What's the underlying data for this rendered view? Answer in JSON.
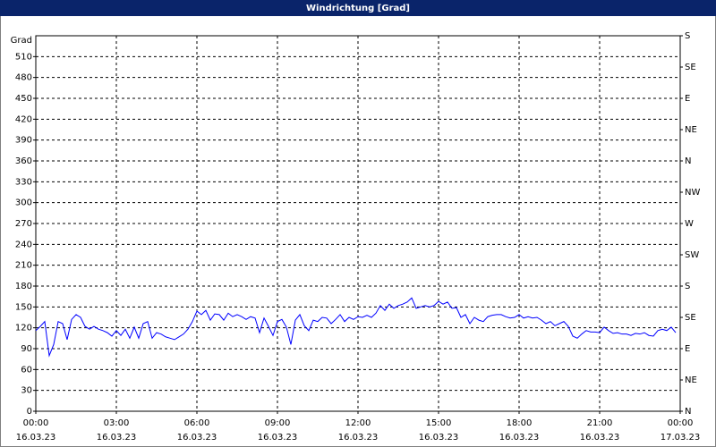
{
  "chart_data": {
    "type": "line",
    "title": "Windrichtung [Grad]",
    "ylabel": "Grad",
    "x": [
      0,
      10,
      20,
      30,
      40,
      50,
      60,
      70,
      80,
      90,
      100,
      110,
      120,
      130,
      140,
      150,
      160,
      170,
      180,
      190,
      200,
      210,
      220,
      230,
      240,
      250,
      260,
      270,
      280,
      290,
      300,
      310,
      320,
      330,
      340,
      350,
      360,
      370,
      380,
      390,
      400,
      410,
      420,
      430,
      440,
      450,
      460,
      470,
      480,
      490,
      500,
      510,
      520,
      530,
      540,
      550,
      560,
      570,
      580,
      590,
      600,
      610,
      620,
      630,
      640,
      650,
      660,
      670,
      680,
      690,
      700,
      710,
      720,
      730,
      740,
      750,
      760,
      770,
      780,
      790,
      800,
      810,
      820,
      830,
      840,
      850,
      860,
      870,
      880,
      890,
      900,
      910,
      920,
      930,
      940,
      950,
      960,
      970,
      980,
      990,
      1000,
      1010,
      1020,
      1030,
      1040,
      1050,
      1060,
      1070,
      1080,
      1090,
      1100,
      1110,
      1120,
      1130,
      1140,
      1150,
      1160,
      1170,
      1180,
      1190,
      1200,
      1210,
      1220,
      1230,
      1240,
      1250,
      1260,
      1270,
      1280,
      1290,
      1300,
      1310,
      1320,
      1330,
      1340,
      1350,
      1360,
      1370,
      1380,
      1390,
      1400,
      1410,
      1420,
      1430
    ],
    "series": [
      {
        "color": "#0000ff",
        "values": [
          116,
          122,
          129,
          80,
          96,
          129,
          126,
          103,
          132,
          139,
          135,
          122,
          118,
          122,
          118,
          116,
          113,
          108,
          116,
          109,
          118,
          105,
          121,
          105,
          126,
          129,
          105,
          113,
          111,
          107,
          105,
          103,
          107,
          111,
          118,
          129,
          144,
          139,
          145,
          131,
          140,
          139,
          131,
          141,
          136,
          139,
          136,
          132,
          136,
          134,
          113,
          134,
          122,
          109,
          129,
          132,
          121,
          96,
          131,
          139,
          123,
          116,
          131,
          129,
          135,
          134,
          126,
          132,
          139,
          129,
          135,
          132,
          136,
          135,
          138,
          135,
          141,
          152,
          145,
          154,
          148,
          152,
          154,
          157,
          163,
          148,
          150,
          152,
          150,
          152,
          158,
          154,
          157,
          148,
          149,
          135,
          139,
          126,
          135,
          131,
          129,
          136,
          138,
          139,
          139,
          136,
          134,
          135,
          139,
          134,
          136,
          134,
          135,
          131,
          126,
          129,
          123,
          126,
          129,
          122,
          108,
          105,
          111,
          116,
          114,
          114,
          113,
          121,
          116,
          112,
          113,
          111,
          111,
          109,
          112,
          111,
          113,
          109,
          108,
          116,
          118,
          116,
          121,
          113
        ]
      }
    ],
    "xlim": [
      0,
      1440
    ],
    "xticks": [
      {
        "value": 0,
        "label": "00:00"
      },
      {
        "value": 180,
        "label": "03:00"
      },
      {
        "value": 360,
        "label": "06:00"
      },
      {
        "value": 540,
        "label": "09:00"
      },
      {
        "value": 720,
        "label": "12:00"
      },
      {
        "value": 900,
        "label": "15:00"
      },
      {
        "value": 1080,
        "label": "18:00"
      },
      {
        "value": 1260,
        "label": "21:00"
      },
      {
        "value": 1440,
        "label": "00:00"
      }
    ],
    "xtick_dates": [
      "16.03.23",
      "16.03.23",
      "16.03.23",
      "16.03.23",
      "16.03.23",
      "16.03.23",
      "16.03.23",
      "16.03.23",
      "17.03.23"
    ],
    "ylim": [
      0,
      540
    ],
    "yticks": [
      0,
      30,
      60,
      90,
      120,
      150,
      180,
      210,
      240,
      270,
      300,
      330,
      360,
      390,
      420,
      450,
      480,
      510
    ],
    "y2lim": [
      0,
      540
    ],
    "y2ticks": [
      {
        "value": 0,
        "label": "N"
      },
      {
        "value": 45,
        "label": "NE"
      },
      {
        "value": 90,
        "label": "E"
      },
      {
        "value": 135,
        "label": "SE"
      },
      {
        "value": 180,
        "label": "S"
      },
      {
        "value": 225,
        "label": "SW"
      },
      {
        "value": 270,
        "label": "W"
      },
      {
        "value": 315,
        "label": "NW"
      },
      {
        "value": 360,
        "label": "N"
      },
      {
        "value": 405,
        "label": "NE"
      },
      {
        "value": 450,
        "label": "E"
      },
      {
        "value": 495,
        "label": "SE"
      },
      {
        "value": 540,
        "label": "S"
      }
    ],
    "grid": true
  }
}
